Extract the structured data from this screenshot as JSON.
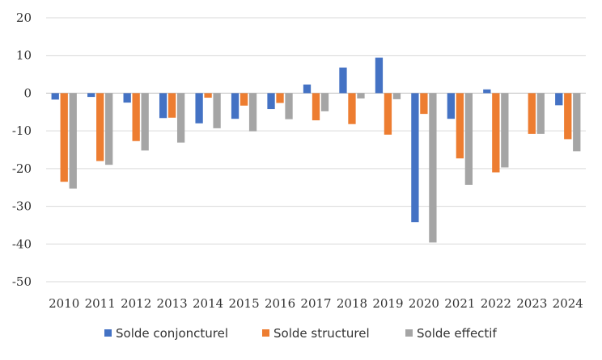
{
  "chart_data": {
    "type": "bar",
    "title": "",
    "xlabel": "",
    "ylabel": "",
    "ylim": [
      -50,
      20
    ],
    "yticks": [
      20,
      10,
      0,
      -10,
      -20,
      -30,
      -40,
      -50
    ],
    "grid": true,
    "legend_position": "bottom",
    "categories": [
      "2010",
      "2011",
      "2012",
      "2013",
      "2014",
      "2015",
      "2016",
      "2017",
      "2018",
      "2019",
      "2020",
      "2021",
      "2022",
      "2023",
      "2024"
    ],
    "series": [
      {
        "name": "Solde conjoncturel",
        "color": "#4472c4",
        "values": [
          -1.7,
          -1.0,
          -2.5,
          -6.6,
          -8.0,
          -6.8,
          -4.2,
          2.3,
          6.8,
          9.4,
          -34.2,
          -6.8,
          1.0,
          0.0,
          -3.2
        ]
      },
      {
        "name": "Solde structurel",
        "color": "#ed7d31",
        "values": [
          -23.5,
          -18.0,
          -12.7,
          -6.5,
          -1.2,
          -3.3,
          -2.6,
          -7.2,
          -8.2,
          -11.0,
          -5.5,
          -17.3,
          -21.0,
          -10.8,
          -12.2
        ]
      },
      {
        "name": "Solde effectif",
        "color": "#a5a5a5",
        "values": [
          -25.3,
          -19.0,
          -15.2,
          -13.1,
          -9.3,
          -10.1,
          -6.9,
          -4.8,
          -1.4,
          -1.6,
          -39.6,
          -24.3,
          -19.7,
          -10.8,
          -15.4
        ]
      }
    ]
  }
}
